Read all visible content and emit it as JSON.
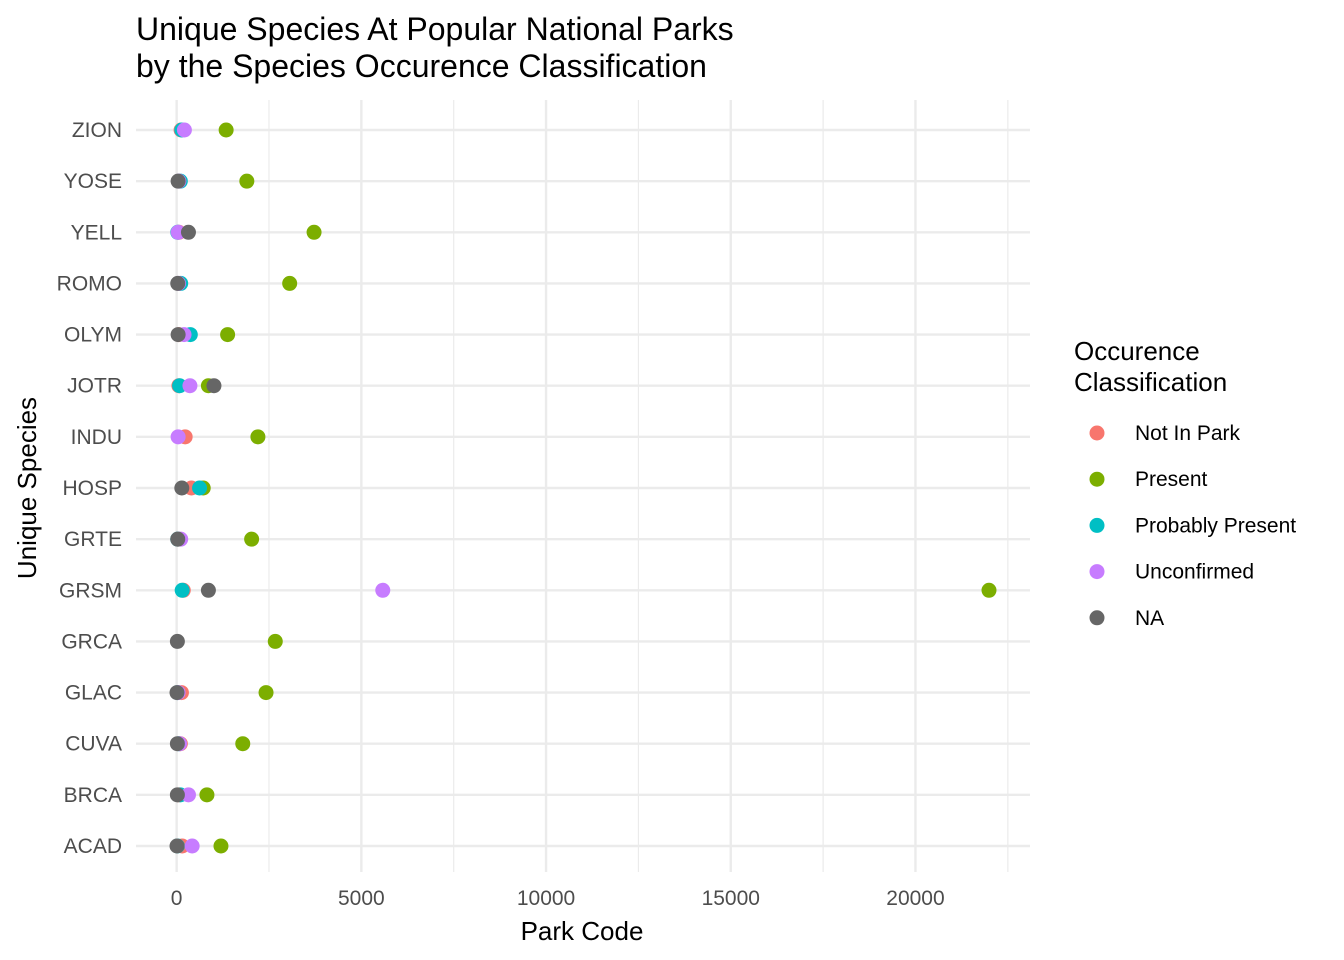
{
  "chart_data": {
    "type": "scatter",
    "title": "Unique Species At Popular National Parks",
    "subtitle": "by the Species Occurence Classification",
    "xlabel": "Park Code",
    "ylabel": "Unique Species",
    "xlim": [
      -1100,
      23100
    ],
    "x_ticks": [
      0,
      5000,
      10000,
      15000,
      20000
    ],
    "grid": true,
    "categories": [
      "ACAD",
      "BRCA",
      "CUVA",
      "GLAC",
      "GRCA",
      "GRSM",
      "GRTE",
      "HOSP",
      "INDU",
      "JOTR",
      "OLYM",
      "ROMO",
      "YELL",
      "YOSE",
      "ZION"
    ],
    "legend": {
      "title_line1": "Occurence",
      "title_line2": "Classification",
      "position": "right"
    },
    "series": [
      {
        "name": "Not In Park",
        "color": "#F8766D",
        "points": [
          [
            "ACAD",
            150
          ],
          [
            "BRCA",
            60
          ],
          [
            "CUVA",
            100
          ],
          [
            "GLAC",
            130
          ],
          [
            "GRSM",
            180
          ],
          [
            "GRTE",
            40
          ],
          [
            "HOSP",
            400
          ],
          [
            "INDU",
            230
          ],
          [
            "JOTR",
            60
          ],
          [
            "OLYM",
            60
          ],
          [
            "YELL",
            60
          ],
          [
            "ZION",
            120
          ]
        ]
      },
      {
        "name": "Present",
        "color": "#7CAE00",
        "points": [
          [
            "ACAD",
            1200
          ],
          [
            "BRCA",
            820
          ],
          [
            "CUVA",
            1790
          ],
          [
            "GLAC",
            2420
          ],
          [
            "GRCA",
            2670
          ],
          [
            "GRSM",
            21990
          ],
          [
            "GRTE",
            2030
          ],
          [
            "HOSP",
            720
          ],
          [
            "INDU",
            2200
          ],
          [
            "JOTR",
            860
          ],
          [
            "OLYM",
            1380
          ],
          [
            "ROMO",
            3060
          ],
          [
            "YELL",
            3720
          ],
          [
            "YOSE",
            1900
          ],
          [
            "ZION",
            1340
          ]
        ]
      },
      {
        "name": "Probably Present",
        "color": "#00BFC4",
        "points": [
          [
            "ACAD",
            20
          ],
          [
            "BRCA",
            100
          ],
          [
            "CUVA",
            60
          ],
          [
            "GLAC",
            20
          ],
          [
            "GRSM",
            150
          ],
          [
            "GRTE",
            30
          ],
          [
            "HOSP",
            620
          ],
          [
            "JOTR",
            80
          ],
          [
            "OLYM",
            370
          ],
          [
            "ROMO",
            110
          ],
          [
            "YELL",
            30
          ],
          [
            "YOSE",
            100
          ],
          [
            "ZION",
            140
          ]
        ]
      },
      {
        "name": "Unconfirmed",
        "color": "#C77CFF",
        "points": [
          [
            "ACAD",
            420
          ],
          [
            "BRCA",
            320
          ],
          [
            "CUVA",
            80
          ],
          [
            "GLAC",
            40
          ],
          [
            "GRSM",
            5580
          ],
          [
            "GRTE",
            110
          ],
          [
            "INDU",
            40
          ],
          [
            "JOTR",
            360
          ],
          [
            "OLYM",
            200
          ],
          [
            "ROMO",
            50
          ],
          [
            "YELL",
            40
          ],
          [
            "YOSE",
            60
          ],
          [
            "ZION",
            210
          ]
        ]
      },
      {
        "name": "NA",
        "color": "#666666",
        "points": [
          [
            "ACAD",
            10
          ],
          [
            "BRCA",
            20
          ],
          [
            "CUVA",
            20
          ],
          [
            "GLAC",
            10
          ],
          [
            "GRCA",
            20
          ],
          [
            "GRSM",
            860
          ],
          [
            "GRTE",
            30
          ],
          [
            "HOSP",
            140
          ],
          [
            "JOTR",
            1010
          ],
          [
            "OLYM",
            40
          ],
          [
            "ROMO",
            30
          ],
          [
            "YELL",
            320
          ],
          [
            "YOSE",
            40
          ]
        ]
      }
    ]
  }
}
